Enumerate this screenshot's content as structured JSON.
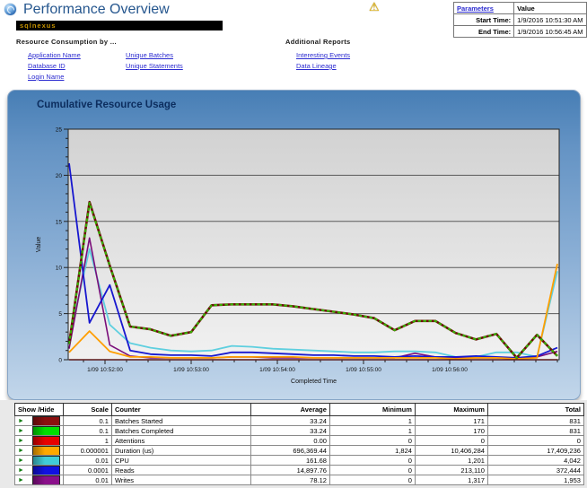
{
  "header": {
    "title": "Performance Overview",
    "banner": "sqlnexus",
    "warning_icon": "warning",
    "parameters_table": {
      "col1_header": "Parameters",
      "col2_header": "Value",
      "rows": [
        {
          "label": "Start Time:",
          "value": "1/9/2016 10:51:30 AM"
        },
        {
          "label": "End Time:",
          "value": "1/9/2016 10:56:45 AM"
        }
      ]
    }
  },
  "nav": {
    "resource_heading": "Resource Consumption by ...",
    "resource_links_col1": [
      "Application Name",
      "Database ID",
      "Login Name"
    ],
    "resource_links_col2": [
      "Unique Batches",
      "Unique Statements"
    ],
    "additional_heading": "Additional Reports",
    "additional_links": [
      "Interesting Events",
      "Data Lineage"
    ]
  },
  "chart_data": {
    "type": "line",
    "title": "Cumulative Resource Usage",
    "xlabel": "Completed Time",
    "ylabel": "Value",
    "ylim": [
      0,
      25
    ],
    "y_ticks": [
      0,
      5,
      10,
      15,
      20,
      25
    ],
    "x_tick_labels": [
      "1/09 10:52:00",
      "1/09 10:53:00",
      "1/09 10:54:00",
      "1/09 10:55:00",
      "1/09 10:56:00"
    ],
    "grid": "horizontal-only",
    "legend_position": "table-below-chart",
    "note": "series values are plotted after applying each counter's scale factor; estimates read from pixels",
    "series": [
      {
        "name": "Batches Started",
        "color": "#6e0a0a",
        "dash": "solid",
        "width": 2.6,
        "scaled_values": [
          1.7,
          17.1,
          10.2,
          3.6,
          3.3,
          2.6,
          3.0,
          5.9,
          6.0,
          6.0,
          6.0,
          5.8,
          5.5,
          5.2,
          4.9,
          4.5,
          3.2,
          4.2,
          4.2,
          2.9,
          2.2,
          2.8,
          0.2,
          2.7,
          0.4
        ]
      },
      {
        "name": "Batches Completed",
        "color": "#35b300",
        "dash": "dashed",
        "width": 2.1,
        "scaled_values": [
          1.7,
          17.0,
          10.2,
          3.6,
          3.3,
          2.6,
          3.0,
          5.9,
          6.0,
          6.0,
          6.0,
          5.8,
          5.5,
          5.2,
          4.9,
          4.5,
          3.2,
          4.2,
          4.2,
          2.9,
          2.2,
          2.8,
          0.2,
          2.7,
          0.4
        ]
      },
      {
        "name": "Attentions",
        "color": "#cc0000",
        "dash": "solid",
        "width": 1.4,
        "scaled_values": [
          0,
          0,
          0,
          0,
          0,
          0,
          0,
          0,
          0,
          0,
          0,
          0,
          0,
          0,
          0,
          0,
          0,
          0,
          0,
          0,
          0,
          0,
          0,
          0,
          0
        ]
      },
      {
        "name": "Duration (us)",
        "color": "#ff9e00",
        "dash": "solid",
        "width": 1.8,
        "scaled_values": [
          0.8,
          3.1,
          0.9,
          0.3,
          0.3,
          0.2,
          0.2,
          0.2,
          0.3,
          0.3,
          0.3,
          0.3,
          0.2,
          0.2,
          0.2,
          0.2,
          0.2,
          0.2,
          0.2,
          0.1,
          0.2,
          0.2,
          0.1,
          0.2,
          10.4
        ]
      },
      {
        "name": "CPU",
        "color": "#5ecfdf",
        "dash": "solid",
        "width": 1.8,
        "scaled_values": [
          2.2,
          12.0,
          3.8,
          1.8,
          1.3,
          1.0,
          0.9,
          1.0,
          1.5,
          1.4,
          1.2,
          1.1,
          1.0,
          0.9,
          0.8,
          0.8,
          0.9,
          0.9,
          0.8,
          0.3,
          0.3,
          0.8,
          0.8,
          0.3,
          9.6
        ]
      },
      {
        "name": "Reads",
        "color": "#1717cf",
        "dash": "solid",
        "width": 1.8,
        "scaled_values": [
          21.3,
          4.0,
          8.1,
          1.0,
          0.6,
          0.5,
          0.5,
          0.4,
          0.8,
          0.8,
          0.7,
          0.6,
          0.5,
          0.5,
          0.4,
          0.4,
          0.3,
          0.4,
          0.3,
          0.3,
          0.4,
          0.3,
          0.2,
          0.4,
          1.3
        ]
      },
      {
        "name": "Writes",
        "color": "#7a0e7a",
        "dash": "solid",
        "width": 1.6,
        "scaled_values": [
          1.2,
          13.2,
          1.6,
          0.4,
          0.2,
          0.2,
          0.2,
          0.2,
          0.3,
          0.3,
          0.2,
          0.2,
          0.2,
          0.2,
          0.2,
          0.2,
          0.2,
          0.7,
          0.3,
          0.2,
          0.2,
          0.2,
          0.1,
          0.3,
          0.9
        ]
      }
    ]
  },
  "legend_table": {
    "headers": [
      "Show /Hide",
      "Scale",
      "Counter",
      "Average",
      "Minimum",
      "Maximum",
      "Total"
    ],
    "rows": [
      {
        "color": "#8a0f0f",
        "scale": "0.1",
        "counter": "Batches Started",
        "average": "33.24",
        "minimum": "1",
        "maximum": "171",
        "total": "831"
      },
      {
        "color": "#00dd00",
        "scale": "0.1",
        "counter": "Batches Completed",
        "average": "33.24",
        "minimum": "1",
        "maximum": "170",
        "total": "831"
      },
      {
        "color": "#e80000",
        "scale": "1",
        "counter": "Attentions",
        "average": "0.00",
        "minimum": "0",
        "maximum": "0",
        "total": "0"
      },
      {
        "color": "#ffa800",
        "scale": "0.000001",
        "counter": "Duration (us)",
        "average": "696,369.44",
        "minimum": "1,824",
        "maximum": "10,406,284",
        "total": "17,409,236"
      },
      {
        "color": "#40ccd8",
        "scale": "0.01",
        "counter": "CPU",
        "average": "161.68",
        "minimum": "0",
        "maximum": "1,201",
        "total": "4,042"
      },
      {
        "color": "#1111e0",
        "scale": "0.0001",
        "counter": "Reads",
        "average": "14,897.76",
        "minimum": "0",
        "maximum": "213,110",
        "total": "372,444"
      },
      {
        "color": "#8a0f8a",
        "scale": "0.01",
        "counter": "Writes",
        "average": "78.12",
        "minimum": "0",
        "maximum": "1,317",
        "total": "1,953"
      }
    ]
  }
}
